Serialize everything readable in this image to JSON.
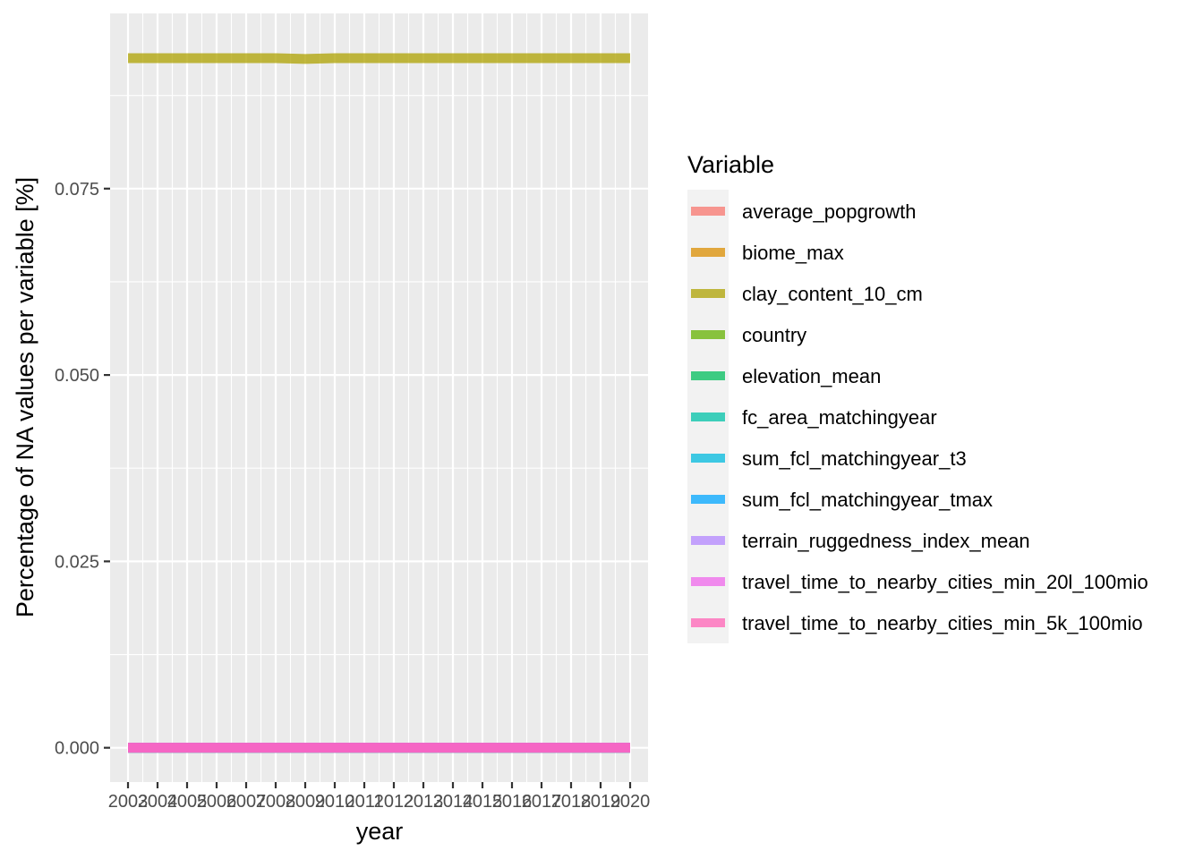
{
  "chart_data": {
    "type": "line",
    "x": [
      2003,
      2004,
      2005,
      2006,
      2007,
      2008,
      2009,
      2010,
      2011,
      2012,
      2013,
      2014,
      2015,
      2016,
      2017,
      2018,
      2019,
      2020
    ],
    "x_tick_labels": [
      "2003",
      "2004",
      "2005",
      "2006",
      "2007",
      "2008",
      "2009",
      "2010",
      "2011",
      "2012",
      "2013",
      "2014",
      "2015",
      "2016",
      "2017",
      "2018",
      "2019",
      "2020"
    ],
    "xlabel": "year",
    "ylabel": "Percentage of NA values per variable [%]",
    "ylim": [
      -0.0046,
      0.0985
    ],
    "y_ticks": [
      0.0,
      0.025,
      0.05,
      0.075
    ],
    "y_tick_labels": [
      "0.000",
      "0.025",
      "0.050",
      "0.075"
    ],
    "grid": true,
    "legend": {
      "title": "Variable",
      "placement": "right"
    },
    "series": [
      {
        "name": "average_popgrowth",
        "color": "#F8766D",
        "values": [
          0,
          0,
          0,
          0,
          0,
          0,
          0,
          0,
          0,
          0,
          0,
          0,
          0,
          0,
          0,
          0,
          0,
          0
        ]
      },
      {
        "name": "biome_max",
        "color": "#DB8E00",
        "values": [
          0,
          0,
          0,
          0,
          0,
          0,
          0,
          0,
          0,
          0,
          0,
          0,
          0,
          0,
          0,
          0,
          0,
          0
        ]
      },
      {
        "name": "clay_content_10_cm",
        "color": "#AEA200",
        "values": [
          0.0925,
          0.0925,
          0.0925,
          0.0925,
          0.0925,
          0.0925,
          0.0924,
          0.0925,
          0.0925,
          0.0925,
          0.0925,
          0.0925,
          0.0925,
          0.0925,
          0.0925,
          0.0925,
          0.0925,
          0.0925
        ]
      },
      {
        "name": "country",
        "color": "#64B200",
        "values": [
          0,
          0,
          0,
          0,
          0,
          0,
          0,
          0,
          0,
          0,
          0,
          0,
          0,
          0,
          0,
          0,
          0,
          0
        ]
      },
      {
        "name": "elevation_mean",
        "color": "#00BD5C",
        "values": [
          0,
          0,
          0,
          0,
          0,
          0,
          0,
          0,
          0,
          0,
          0,
          0,
          0,
          0,
          0,
          0,
          0,
          0
        ]
      },
      {
        "name": "fc_area_matchingyear",
        "color": "#00C1A7",
        "values": [
          0,
          0,
          0,
          0,
          0,
          0,
          0,
          0,
          0,
          0,
          0,
          0,
          0,
          0,
          0,
          0,
          0,
          0
        ]
      },
      {
        "name": "sum_fcl_matchingyear_t3",
        "color": "#00BADE",
        "values": [
          0,
          0,
          0,
          0,
          0,
          0,
          0,
          0,
          0,
          0,
          0,
          0,
          0,
          0,
          0,
          0,
          0,
          0
        ]
      },
      {
        "name": "sum_fcl_matchingyear_tmax",
        "color": "#00A6FF",
        "values": [
          0,
          0,
          0,
          0,
          0,
          0,
          0,
          0,
          0,
          0,
          0,
          0,
          0,
          0,
          0,
          0,
          0,
          0
        ]
      },
      {
        "name": "terrain_ruggedness_index_mean",
        "color": "#B385FF",
        "values": [
          0,
          0,
          0,
          0,
          0,
          0,
          0,
          0,
          0,
          0,
          0,
          0,
          0,
          0,
          0,
          0,
          0,
          0
        ]
      },
      {
        "name": "travel_time_to_nearby_cities_min_20l_100mio",
        "color": "#EF67EB",
        "values": [
          0,
          0,
          0,
          0,
          0,
          0,
          0,
          0,
          0,
          0,
          0,
          0,
          0,
          0,
          0,
          0,
          0,
          0
        ]
      },
      {
        "name": "travel_time_to_nearby_cities_min_5k_100mio",
        "color": "#FF63B6",
        "values": [
          0,
          0,
          0,
          0,
          0,
          0,
          0,
          0,
          0,
          0,
          0,
          0,
          0,
          0,
          0,
          0,
          0,
          0
        ]
      }
    ]
  }
}
